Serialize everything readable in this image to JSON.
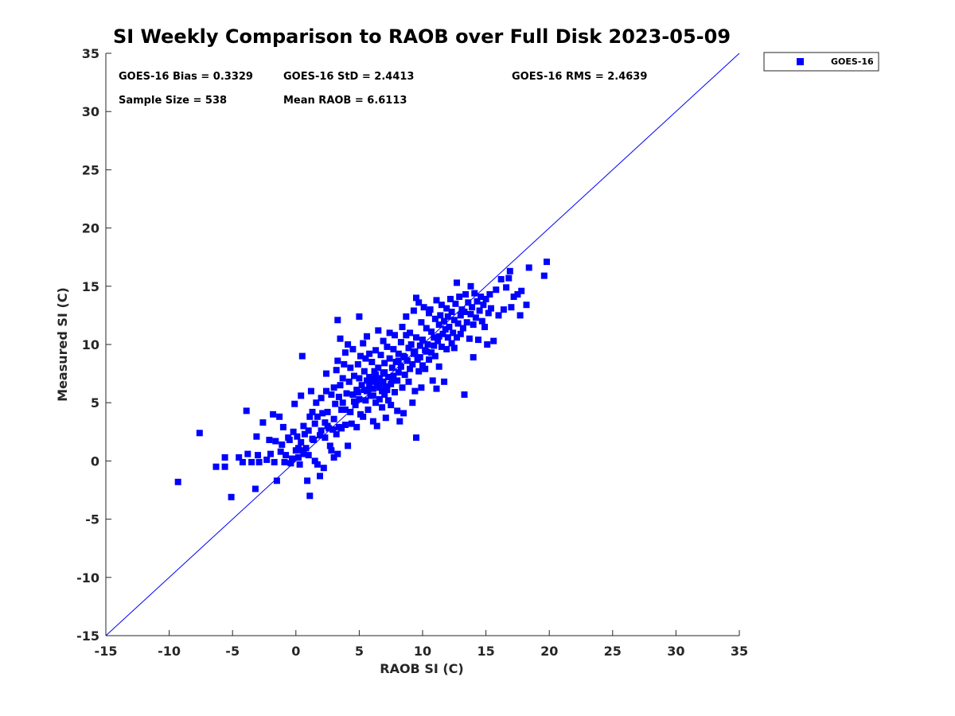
{
  "chart_data": {
    "type": "scatter",
    "title": "SI Weekly Comparison to RAOB over Full Disk 2023-05-09",
    "xlabel": "RAOB SI (C)",
    "ylabel": "Measured SI (C)",
    "xlim": [
      -15,
      35
    ],
    "ylim": [
      -15,
      35
    ],
    "xticks": [
      -15,
      -10,
      -5,
      0,
      5,
      10,
      15,
      20,
      25,
      30,
      35
    ],
    "yticks": [
      -15,
      -10,
      -5,
      0,
      5,
      10,
      15,
      20,
      25,
      30,
      35
    ],
    "grid": false,
    "legend_position": "outside-top-right",
    "reference_line": {
      "name": "1:1 line",
      "from": [
        -15,
        -15
      ],
      "to": [
        35,
        35
      ],
      "color": "#0000ff"
    },
    "stats": {
      "bias": "GOES-16 Bias = 0.3329",
      "std": "GOES-16 StD = 2.4413",
      "rms": "GOES-16 RMS = 2.4639",
      "sample_size": "Sample Size = 538",
      "mean_raob": "Mean RAOB = 6.6113"
    },
    "series": [
      {
        "name": "GOES-16",
        "color": "#0000ff",
        "marker": "square",
        "points": [
          [
            -9.3,
            -1.8
          ],
          [
            -7.6,
            2.4
          ],
          [
            -6.3,
            -0.5
          ],
          [
            -5.6,
            0.3
          ],
          [
            -5.6,
            -0.5
          ],
          [
            -5.1,
            -3.1
          ],
          [
            -4.5,
            0.3
          ],
          [
            -4.2,
            -0.1
          ],
          [
            -3.9,
            4.3
          ],
          [
            -3.8,
            0.6
          ],
          [
            -3.5,
            -0.1
          ],
          [
            -3.2,
            -2.4
          ],
          [
            -3.1,
            2.1
          ],
          [
            -3.0,
            0.5
          ],
          [
            -2.9,
            -0.1
          ],
          [
            -2.6,
            3.3
          ],
          [
            -2.3,
            0.1
          ],
          [
            -2.1,
            1.8
          ],
          [
            -2.0,
            0.6
          ],
          [
            -1.8,
            4.0
          ],
          [
            -1.7,
            -0.1
          ],
          [
            -1.6,
            1.7
          ],
          [
            -1.5,
            -1.7
          ],
          [
            -1.3,
            3.8
          ],
          [
            -1.2,
            0.8
          ],
          [
            -1.1,
            1.4
          ],
          [
            -1.0,
            2.9
          ],
          [
            -0.9,
            -0.1
          ],
          [
            -0.8,
            0.5
          ],
          [
            -0.6,
            2.0
          ],
          [
            -0.5,
            1.8
          ],
          [
            -0.3,
            0.2
          ],
          [
            -0.2,
            2.5
          ],
          [
            -0.1,
            4.9
          ],
          [
            0.0,
            0.9
          ],
          [
            0.1,
            2.1
          ],
          [
            0.2,
            1.1
          ],
          [
            0.2,
            0.3
          ],
          [
            0.3,
            -0.3
          ],
          [
            0.4,
            5.6
          ],
          [
            0.4,
            1.6
          ],
          [
            0.5,
            9.0
          ],
          [
            0.6,
            0.6
          ],
          [
            0.6,
            3.0
          ],
          [
            0.7,
            2.3
          ],
          [
            0.8,
            1.1
          ],
          [
            0.9,
            -1.7
          ],
          [
            1.0,
            2.6
          ],
          [
            1.0,
            0.5
          ],
          [
            1.1,
            3.8
          ],
          [
            1.1,
            -3.0
          ],
          [
            1.2,
            6.0
          ],
          [
            1.3,
            1.9
          ],
          [
            1.3,
            4.2
          ],
          [
            1.5,
            3.2
          ],
          [
            1.5,
            0.0
          ],
          [
            1.6,
            5.0
          ],
          [
            1.7,
            -0.3
          ],
          [
            1.7,
            3.8
          ],
          [
            1.9,
            -1.3
          ],
          [
            2.0,
            2.6
          ],
          [
            2.0,
            5.4
          ],
          [
            2.1,
            4.1
          ],
          [
            2.2,
            -0.6
          ],
          [
            2.3,
            3.3
          ],
          [
            2.3,
            2.0
          ],
          [
            2.4,
            7.5
          ],
          [
            2.4,
            6.0
          ],
          [
            2.5,
            4.2
          ],
          [
            2.6,
            2.8
          ],
          [
            2.7,
            1.3
          ],
          [
            2.8,
            5.7
          ],
          [
            2.8,
            0.9
          ],
          [
            2.9,
            2.7
          ],
          [
            3.0,
            3.6
          ],
          [
            3.0,
            6.3
          ],
          [
            3.0,
            0.3
          ],
          [
            3.1,
            4.9
          ],
          [
            3.2,
            2.3
          ],
          [
            3.2,
            7.8
          ],
          [
            3.3,
            8.6
          ],
          [
            3.3,
            12.1
          ],
          [
            3.3,
            0.6
          ],
          [
            3.4,
            5.5
          ],
          [
            3.5,
            10.5
          ],
          [
            3.5,
            6.5
          ],
          [
            3.6,
            4.4
          ],
          [
            3.6,
            2.8
          ],
          [
            3.7,
            7.1
          ],
          [
            3.7,
            5.0
          ],
          [
            3.8,
            8.3
          ],
          [
            3.9,
            9.3
          ],
          [
            3.9,
            3.1
          ],
          [
            4.0,
            5.8
          ],
          [
            4.1,
            1.3
          ],
          [
            4.1,
            10.0
          ],
          [
            4.2,
            6.8
          ],
          [
            4.3,
            4.2
          ],
          [
            4.3,
            8.0
          ],
          [
            4.4,
            3.2
          ],
          [
            4.5,
            5.7
          ],
          [
            4.5,
            9.6
          ],
          [
            4.6,
            7.3
          ],
          [
            4.7,
            4.8
          ],
          [
            4.8,
            2.9
          ],
          [
            4.8,
            6.1
          ],
          [
            4.9,
            8.3
          ],
          [
            5.0,
            12.4
          ],
          [
            5.0,
            5.3
          ],
          [
            5.0,
            7.1
          ],
          [
            5.1,
            9.0
          ],
          [
            5.1,
            4.0
          ],
          [
            5.2,
            6.5
          ],
          [
            5.3,
            10.1
          ],
          [
            5.3,
            3.8
          ],
          [
            5.4,
            7.7
          ],
          [
            5.5,
            5.2
          ],
          [
            5.5,
            8.8
          ],
          [
            5.6,
            10.7
          ],
          [
            5.6,
            6.0
          ],
          [
            5.7,
            4.4
          ],
          [
            5.8,
            7.2
          ],
          [
            5.8,
            9.2
          ],
          [
            5.9,
            5.6
          ],
          [
            6.0,
            6.8
          ],
          [
            6.0,
            8.5
          ],
          [
            6.1,
            3.4
          ],
          [
            6.1,
            6.2
          ],
          [
            6.2,
            7.7
          ],
          [
            6.3,
            5.0
          ],
          [
            6.3,
            9.5
          ],
          [
            6.4,
            3.0
          ],
          [
            6.4,
            6.6
          ],
          [
            6.5,
            8.0
          ],
          [
            6.5,
            11.2
          ],
          [
            6.6,
            5.3
          ],
          [
            6.6,
            7.1
          ],
          [
            6.7,
            9.1
          ],
          [
            6.8,
            6.0
          ],
          [
            6.8,
            4.6
          ],
          [
            6.9,
            10.3
          ],
          [
            6.9,
            7.5
          ],
          [
            7.0,
            5.7
          ],
          [
            7.0,
            8.4
          ],
          [
            7.1,
            3.7
          ],
          [
            7.1,
            6.4
          ],
          [
            7.2,
            9.8
          ],
          [
            7.3,
            7.2
          ],
          [
            7.3,
            5.2
          ],
          [
            7.4,
            8.8
          ],
          [
            7.4,
            11.0
          ],
          [
            7.5,
            6.6
          ],
          [
            7.5,
            4.8
          ],
          [
            7.6,
            8.0
          ],
          [
            7.7,
            9.6
          ],
          [
            7.7,
            7.3
          ],
          [
            7.8,
            5.9
          ],
          [
            7.8,
            10.8
          ],
          [
            7.9,
            8.5
          ],
          [
            8.0,
            6.9
          ],
          [
            8.0,
            4.3
          ],
          [
            8.1,
            9.2
          ],
          [
            8.1,
            7.6
          ],
          [
            8.2,
            3.4
          ],
          [
            8.3,
            10.2
          ],
          [
            8.3,
            8.1
          ],
          [
            8.4,
            6.3
          ],
          [
            8.4,
            11.5
          ],
          [
            8.5,
            4.1
          ],
          [
            8.5,
            9.0
          ],
          [
            8.6,
            7.4
          ],
          [
            8.7,
            10.8
          ],
          [
            8.7,
            12.4
          ],
          [
            8.8,
            8.6
          ],
          [
            8.9,
            9.7
          ],
          [
            8.9,
            6.8
          ],
          [
            9.0,
            7.9
          ],
          [
            9.0,
            11.0
          ],
          [
            9.1,
            10.0
          ],
          [
            9.2,
            8.3
          ],
          [
            9.2,
            5.0
          ],
          [
            9.3,
            12.9
          ],
          [
            9.3,
            9.2
          ],
          [
            9.4,
            6.0
          ],
          [
            9.5,
            14.0
          ],
          [
            9.5,
            2.0
          ],
          [
            9.5,
            10.6
          ],
          [
            9.6,
            8.7
          ],
          [
            9.7,
            13.6
          ],
          [
            9.7,
            7.7
          ],
          [
            9.8,
            9.9
          ],
          [
            9.9,
            11.9
          ],
          [
            9.9,
            6.3
          ],
          [
            10.0,
            10.4
          ],
          [
            10.0,
            8.2
          ],
          [
            10.1,
            13.2
          ],
          [
            10.2,
            9.5
          ],
          [
            10.2,
            7.9
          ],
          [
            10.3,
            11.4
          ],
          [
            10.4,
            10.0
          ],
          [
            10.5,
            12.7
          ],
          [
            10.5,
            8.7
          ],
          [
            10.6,
            13.0
          ],
          [
            10.7,
            9.3
          ],
          [
            10.7,
            11.1
          ],
          [
            10.8,
            6.9
          ],
          [
            10.9,
            10.6
          ],
          [
            11.0,
            12.2
          ],
          [
            11.0,
            9.0
          ],
          [
            11.1,
            6.2
          ],
          [
            11.1,
            13.8
          ],
          [
            11.2,
            10.3
          ],
          [
            11.3,
            11.7
          ],
          [
            11.3,
            8.1
          ],
          [
            11.4,
            12.5
          ],
          [
            11.5,
            9.8
          ],
          [
            11.5,
            13.4
          ],
          [
            11.6,
            10.9
          ],
          [
            11.7,
            12.0
          ],
          [
            11.7,
            6.8
          ],
          [
            11.8,
            11.3
          ],
          [
            11.9,
            9.6
          ],
          [
            11.9,
            13.1
          ],
          [
            12.0,
            10.6
          ],
          [
            12.0,
            12.4
          ],
          [
            12.1,
            11.5
          ],
          [
            12.2,
            13.9
          ],
          [
            12.3,
            10.1
          ],
          [
            12.3,
            12.8
          ],
          [
            12.4,
            11.0
          ],
          [
            12.5,
            9.7
          ],
          [
            12.5,
            12.1
          ],
          [
            12.6,
            13.5
          ],
          [
            12.7,
            15.3
          ],
          [
            12.7,
            10.6
          ],
          [
            12.8,
            11.8
          ],
          [
            12.9,
            14.1
          ],
          [
            13.0,
            12.5
          ],
          [
            13.0,
            10.9
          ],
          [
            13.1,
            13.0
          ],
          [
            13.2,
            11.4
          ],
          [
            13.3,
            5.7
          ],
          [
            13.3,
            12.8
          ],
          [
            13.4,
            14.3
          ],
          [
            13.5,
            11.9
          ],
          [
            13.6,
            13.6
          ],
          [
            13.7,
            10.5
          ],
          [
            13.8,
            12.6
          ],
          [
            13.8,
            15.0
          ],
          [
            13.9,
            13.2
          ],
          [
            14.0,
            8.9
          ],
          [
            14.0,
            11.7
          ],
          [
            14.1,
            14.4
          ],
          [
            14.2,
            12.3
          ],
          [
            14.3,
            13.7
          ],
          [
            14.4,
            10.4
          ],
          [
            14.5,
            12.9
          ],
          [
            14.6,
            14.1
          ],
          [
            14.7,
            12.0
          ],
          [
            14.8,
            13.4
          ],
          [
            14.9,
            11.5
          ],
          [
            15.0,
            13.9
          ],
          [
            15.1,
            10.0
          ],
          [
            15.2,
            12.7
          ],
          [
            15.3,
            14.3
          ],
          [
            15.4,
            13.1
          ],
          [
            15.6,
            10.3
          ],
          [
            15.8,
            14.7
          ],
          [
            16.0,
            12.5
          ],
          [
            16.2,
            15.6
          ],
          [
            16.4,
            13.0
          ],
          [
            16.6,
            14.9
          ],
          [
            16.8,
            15.7
          ],
          [
            16.9,
            16.3
          ],
          [
            17.0,
            13.2
          ],
          [
            17.2,
            14.1
          ],
          [
            17.5,
            14.3
          ],
          [
            17.7,
            12.5
          ],
          [
            17.8,
            14.6
          ],
          [
            18.2,
            13.4
          ],
          [
            18.4,
            16.6
          ],
          [
            19.6,
            15.9
          ],
          [
            19.8,
            17.1
          ],
          [
            5.8,
            6.5
          ],
          [
            6.2,
            7.0
          ],
          [
            6.6,
            6.3
          ],
          [
            7.0,
            7.6
          ],
          [
            5.4,
            6.1
          ],
          [
            6.1,
            5.6
          ],
          [
            6.9,
            6.8
          ],
          [
            7.6,
            6.9
          ],
          [
            4.9,
            5.9
          ],
          [
            5.6,
            6.9
          ],
          [
            6.3,
            7.4
          ],
          [
            7.2,
            6.1
          ],
          [
            8.1,
            8.6
          ],
          [
            8.6,
            8.9
          ],
          [
            9.4,
            9.4
          ],
          [
            9.8,
            8.9
          ],
          [
            10.3,
            9.4
          ],
          [
            10.9,
            9.9
          ],
          [
            11.3,
            10.7
          ],
          [
            2.5,
            3.0
          ],
          [
            1.4,
            1.8
          ],
          [
            0.5,
            0.9
          ],
          [
            3.9,
            4.4
          ],
          [
            4.6,
            5.1
          ],
          [
            -0.4,
            -0.2
          ],
          [
            1.9,
            2.2
          ],
          [
            3.4,
            2.9
          ]
        ]
      }
    ]
  }
}
